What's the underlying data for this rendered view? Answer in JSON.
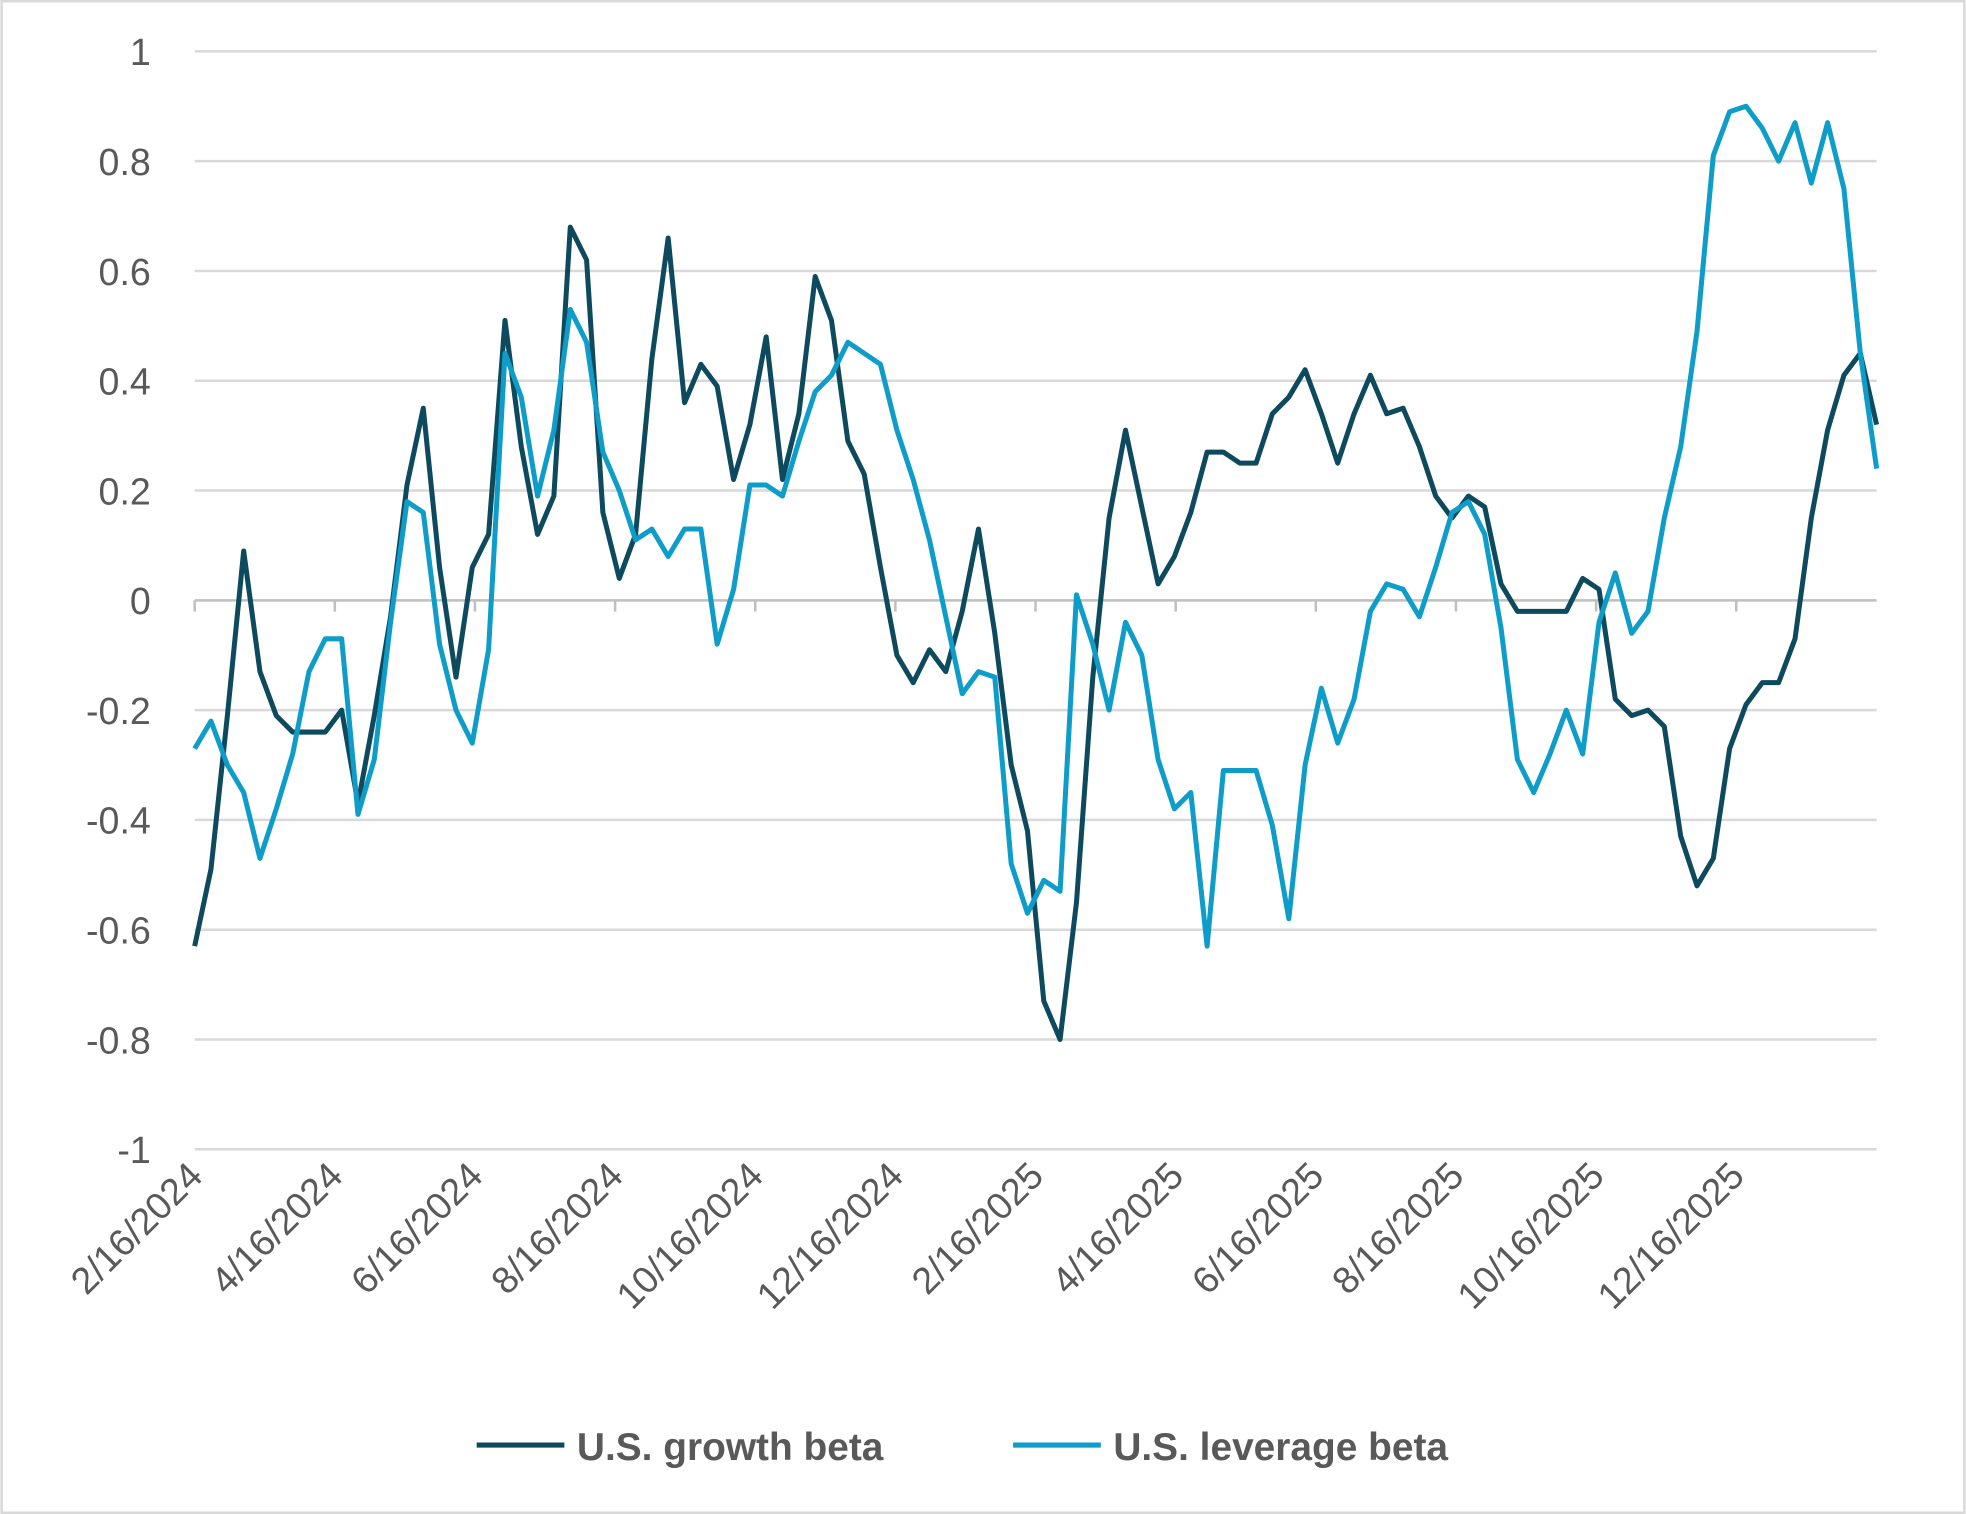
{
  "chart_data": {
    "type": "line",
    "title": "",
    "xlabel": "",
    "ylabel": "",
    "ylim": [
      -1,
      1
    ],
    "y_ticks": [
      "1",
      "0.8",
      "0.6",
      "0.4",
      "0.2",
      "0",
      "-0.2",
      "-0.4",
      "-0.6",
      "-0.8",
      "-1"
    ],
    "x_tick_labels": [
      "2/16/2024",
      "4/16/2024",
      "6/16/2024",
      "8/16/2024",
      "10/16/2024",
      "12/16/2024",
      "2/16/2025",
      "4/16/2025",
      "6/16/2025",
      "8/16/2025",
      "10/16/2025",
      "12/16/2025"
    ],
    "x_frequency": "weekly",
    "grid": "horizontal",
    "legend_position": "bottom",
    "series": [
      {
        "name": "U.S. growth beta",
        "color": "#0d4a5e",
        "values": [
          -0.63,
          -0.49,
          -0.21,
          0.09,
          -0.13,
          -0.21,
          -0.24,
          -0.24,
          -0.24,
          -0.2,
          -0.37,
          -0.21,
          -0.03,
          0.21,
          0.35,
          0.06,
          -0.14,
          0.06,
          0.12,
          0.51,
          0.28,
          0.12,
          0.19,
          0.68,
          0.62,
          0.16,
          0.04,
          0.12,
          0.44,
          0.66,
          0.36,
          0.43,
          0.39,
          0.22,
          0.32,
          0.48,
          0.22,
          0.34,
          0.59,
          0.51,
          0.29,
          0.23,
          0.06,
          -0.1,
          -0.15,
          -0.09,
          -0.13,
          -0.02,
          0.13,
          -0.06,
          -0.3,
          -0.42,
          -0.73,
          -0.8,
          -0.55,
          -0.14,
          0.15,
          0.31,
          0.17,
          0.03,
          0.08,
          0.16,
          0.27,
          0.27,
          0.25,
          0.25,
          0.34,
          0.37,
          0.42,
          0.34,
          0.25,
          0.34,
          0.41,
          0.34,
          0.35,
          0.28,
          0.19,
          0.15,
          0.19,
          0.17,
          0.03,
          -0.02,
          -0.02,
          -0.02,
          -0.02,
          0.04,
          0.02,
          -0.18,
          -0.21,
          -0.2,
          -0.23,
          -0.43,
          -0.52,
          -0.47,
          -0.27,
          -0.19,
          -0.15,
          -0.15,
          -0.07,
          0.15,
          0.31,
          0.41,
          0.45,
          0.32
        ]
      },
      {
        "name": "U.S. leverage beta",
        "color": "#0e9cc9",
        "values": [
          -0.27,
          -0.22,
          -0.3,
          -0.35,
          -0.47,
          -0.38,
          -0.28,
          -0.13,
          -0.07,
          -0.07,
          -0.39,
          -0.29,
          -0.04,
          0.18,
          0.16,
          -0.08,
          -0.2,
          -0.26,
          -0.09,
          0.45,
          0.37,
          0.19,
          0.31,
          0.53,
          0.47,
          0.27,
          0.2,
          0.11,
          0.13,
          0.08,
          0.13,
          0.13,
          -0.08,
          0.02,
          0.21,
          0.21,
          0.19,
          0.29,
          0.38,
          0.41,
          0.47,
          0.45,
          0.43,
          0.31,
          0.22,
          0.11,
          -0.03,
          -0.17,
          -0.13,
          -0.14,
          -0.48,
          -0.57,
          -0.51,
          -0.53,
          0.01,
          -0.08,
          -0.2,
          -0.04,
          -0.1,
          -0.29,
          -0.38,
          -0.35,
          -0.63,
          -0.31,
          -0.31,
          -0.31,
          -0.41,
          -0.58,
          -0.3,
          -0.16,
          -0.26,
          -0.18,
          -0.02,
          0.03,
          0.02,
          -0.03,
          0.06,
          0.16,
          0.18,
          0.12,
          -0.05,
          -0.29,
          -0.35,
          -0.28,
          -0.2,
          -0.28,
          -0.04,
          0.05,
          -0.06,
          -0.02,
          0.15,
          0.28,
          0.49,
          0.81,
          0.89,
          0.9,
          0.86,
          0.8,
          0.87,
          0.76,
          0.87,
          0.75,
          0.45,
          0.24
        ]
      }
    ]
  }
}
